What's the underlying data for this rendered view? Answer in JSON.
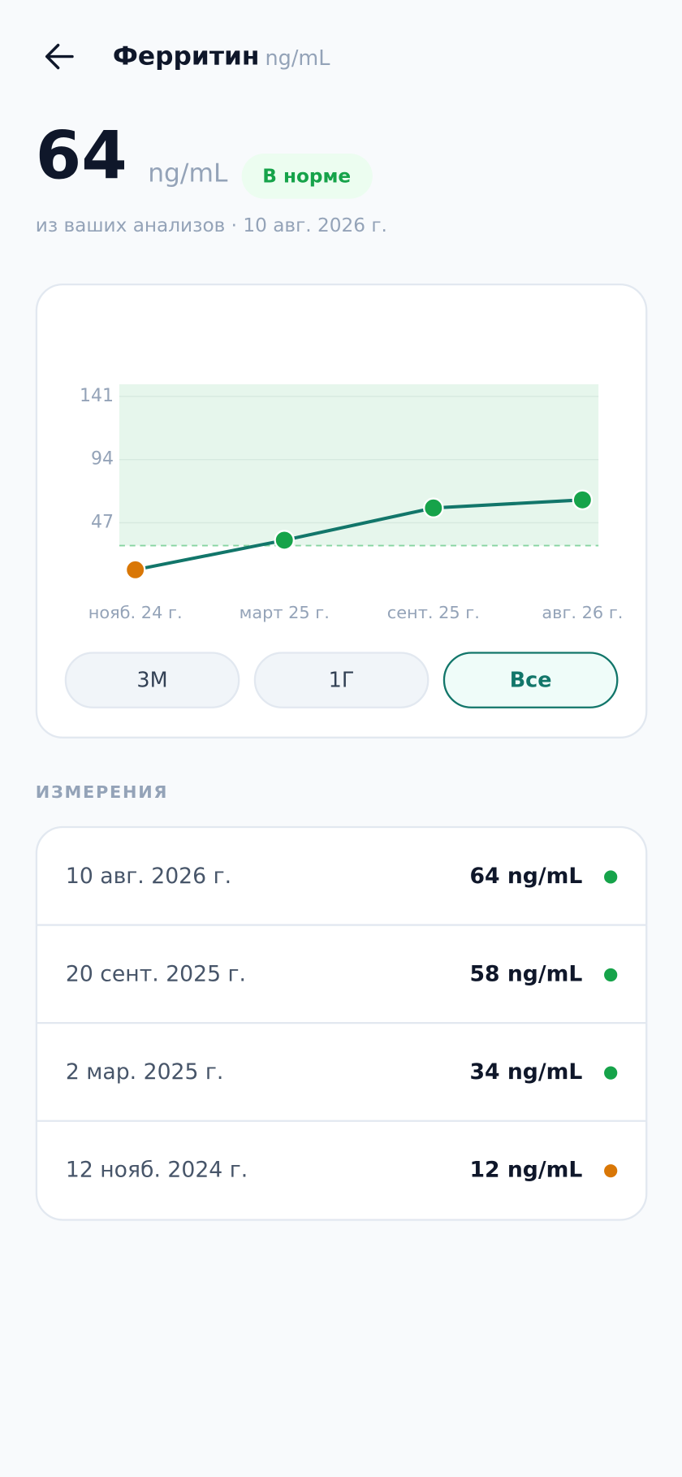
{
  "header": {
    "title": "Ферритин",
    "unit": "ng/mL"
  },
  "summary": {
    "value": "64",
    "unit": "ng/mL",
    "status": "В норме",
    "source": "из ваших анализов · 10 авг. 2026 г."
  },
  "chart_data": {
    "type": "line",
    "categories": [
      "нояб. 24 г.",
      "март 25 г.",
      "сент. 25 г.",
      "авг. 26 г."
    ],
    "values": [
      12,
      34,
      58,
      64
    ],
    "color": "#12766a",
    "point_colors": [
      "#d97706",
      "#16a34a",
      "#16a34a",
      "#16a34a"
    ],
    "ylim": [
      0,
      150
    ],
    "yticks": [
      47,
      94,
      141
    ],
    "grid": true,
    "normal_range": [
      30,
      150
    ]
  },
  "ranges": {
    "options": [
      "3М",
      "1Г",
      "Все"
    ],
    "selected": 2
  },
  "measurements": {
    "title": "ИЗМЕРЕНИЯ",
    "rows": [
      {
        "date": "10 авг. 2026 г.",
        "value": "64 ng/mL",
        "color": "#16a34a"
      },
      {
        "date": "20 сент. 2025 г.",
        "value": "58 ng/mL",
        "color": "#16a34a"
      },
      {
        "date": "2 мар. 2025 г.",
        "value": "34 ng/mL",
        "color": "#16a34a"
      },
      {
        "date": "12 нояб. 2024 г.",
        "value": "12 ng/mL",
        "color": "#d97706"
      }
    ]
  }
}
